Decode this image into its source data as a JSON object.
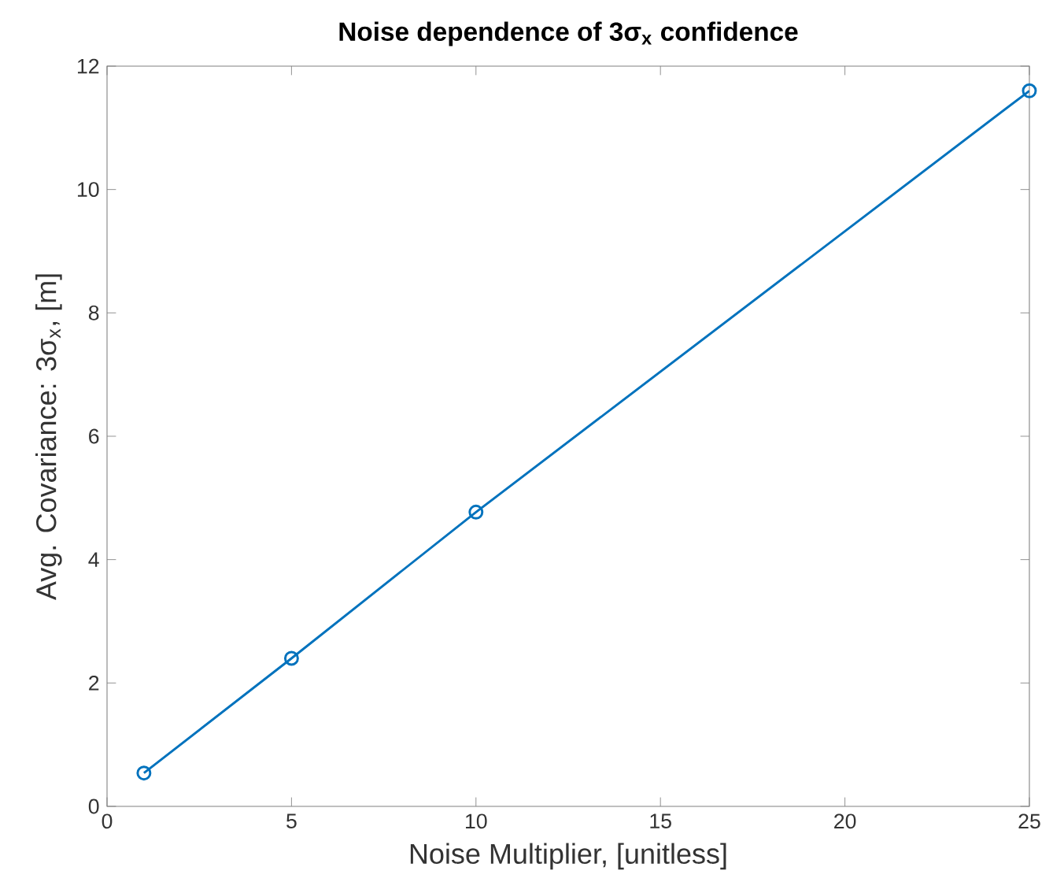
{
  "chart_data": {
    "type": "line",
    "title": "Noise dependence of 3σ$_{x}$ confidence",
    "xlabel": "Noise Multiplier, [unitless]",
    "ylabel": "Avg. Covariance: 3σ$_{x}$, [m]",
    "x": [
      1,
      5,
      10,
      25
    ],
    "series": [
      {
        "color": "#0072bd",
        "values": [
          0.54,
          2.4,
          4.77,
          11.6
        ]
      }
    ],
    "xlim": [
      0,
      25
    ],
    "ylim": [
      0,
      12
    ],
    "xticks": [
      0,
      5,
      10,
      15,
      20,
      25
    ],
    "yticks": [
      0,
      2,
      4,
      6,
      8,
      10,
      12
    ],
    "marker": "circle",
    "line_style": "solid"
  }
}
